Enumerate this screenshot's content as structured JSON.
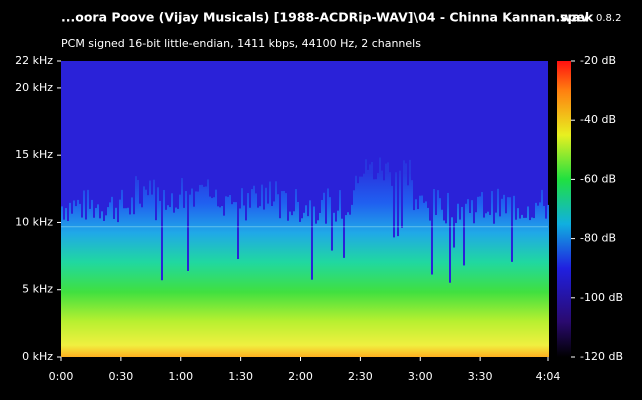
{
  "chart_data": {
    "type": "spectrogram",
    "title": "...oora Poove (Vijay Musicals) [1988-ACDRip-WAV]\\04 - Chinna Kannan.wav",
    "app": "spek",
    "version": "0.8.2",
    "subtitle": "PCM signed 16-bit little-endian, 1411 kbps, 44100 Hz, 2 channels",
    "xlim": [
      0,
      244
    ],
    "xticks": [
      {
        "value": 0,
        "label": "0:00"
      },
      {
        "value": 30,
        "label": "0:30"
      },
      {
        "value": 60,
        "label": "1:00"
      },
      {
        "value": 90,
        "label": "1:30"
      },
      {
        "value": 120,
        "label": "2:00"
      },
      {
        "value": 150,
        "label": "2:30"
      },
      {
        "value": 180,
        "label": "3:00"
      },
      {
        "value": 210,
        "label": "3:30"
      },
      {
        "value": 244,
        "label": "4:04"
      }
    ],
    "ylim": [
      0,
      22
    ],
    "yticks": [
      {
        "value": 0,
        "label": "0 kHz"
      },
      {
        "value": 5,
        "label": "5 kHz"
      },
      {
        "value": 10,
        "label": "10 kHz"
      },
      {
        "value": 15,
        "label": "15 kHz"
      },
      {
        "value": 20,
        "label": "20 kHz"
      },
      {
        "value": 22,
        "label": "22 kHz"
      }
    ],
    "colorbar": {
      "lim": [
        -120,
        -20
      ],
      "ticks": [
        {
          "value": -20,
          "label": "-20 dB"
        },
        {
          "value": -40,
          "label": "-40 dB"
        },
        {
          "value": -60,
          "label": "-60 dB"
        },
        {
          "value": -80,
          "label": "-80 dB"
        },
        {
          "value": -100,
          "label": "-100 dB"
        },
        {
          "value": -120,
          "label": "-120 dB"
        }
      ]
    }
  }
}
